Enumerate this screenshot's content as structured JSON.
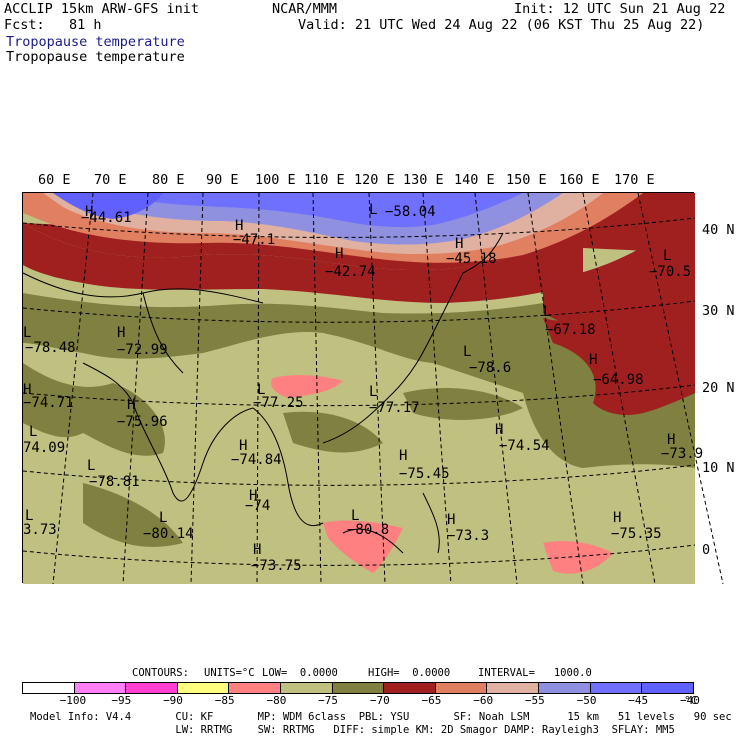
{
  "header": {
    "line1_left": "ACCLIP 15km ARW-GFS init",
    "line1_center": "NCAR/MMM",
    "line1_right": "Init: 12 UTC Sun 21 Aug 22",
    "line2_left": "Fcst:   81 h",
    "line2_right": "Valid: 21 UTC Wed 24 Aug 22 (06 KST Thu 25 Aug 22)",
    "field_title_1": "Tropopause temperature",
    "field_title_2": "Tropopause temperature"
  },
  "lon_labels": [
    "60 E",
    "70 E",
    "80 E",
    "90 E",
    "100 E",
    "110 E",
    "120 E",
    "130 E",
    "140 E",
    "150 E",
    "160 E",
    "170 E"
  ],
  "lat_labels": [
    "40 N",
    "30 N",
    "20 N",
    "10 N",
    "0"
  ],
  "extrema": [
    {
      "label": "−44.61",
      "marker": "H"
    },
    {
      "label": "−58.04",
      "marker": "L"
    },
    {
      "label": "−47.1",
      "marker": "H"
    },
    {
      "label": "−42.74",
      "marker": "H"
    },
    {
      "label": "−45.18",
      "marker": "H"
    },
    {
      "label": "−70.5",
      "marker": "L"
    },
    {
      "label": "−67.18",
      "marker": "L"
    },
    {
      "label": "−78.48",
      "marker": "L"
    },
    {
      "label": "−72.99",
      "marker": "H"
    },
    {
      "label": "−74.71",
      "marker": "H"
    },
    {
      "label": "−75.96",
      "marker": "H"
    },
    {
      "label": "−77.25",
      "marker": "L"
    },
    {
      "label": "−77.17",
      "marker": "L"
    },
    {
      "label": "−78.6",
      "marker": "L"
    },
    {
      "label": "−64.98",
      "marker": "H"
    },
    {
      "label": "−74.54",
      "marker": "H"
    },
    {
      "label": "−73.9",
      "marker": "H"
    },
    {
      "label": "74.09",
      "marker": "L"
    },
    {
      "label": "−74.84",
      "marker": "H"
    },
    {
      "label": "−75.45",
      "marker": "H"
    },
    {
      "label": "−78.81",
      "marker": "L"
    },
    {
      "label": "−74",
      "marker": "H"
    },
    {
      "label": "3.73",
      "marker": "L"
    },
    {
      "label": "−80.14",
      "marker": "L"
    },
    {
      "label": "−80.8",
      "marker": "L"
    },
    {
      "label": "−73.3",
      "marker": "H"
    },
    {
      "label": "−75.35",
      "marker": "H"
    },
    {
      "label": "−73.75",
      "marker": "H"
    }
  ],
  "contour_info": {
    "contours": "CONTOURS:",
    "units": "UNITS=°C",
    "low": "LOW=  0.0000",
    "high": "HIGH=  0.0000",
    "interval": "INTERVAL=   1000.0"
  },
  "colorbar": {
    "colors": [
      "#ffffff",
      "#ff80ff",
      "#ff40d0",
      "#ffff80",
      "#ff8080",
      "#c0c080",
      "#808040",
      "#a02020",
      "#e08060",
      "#e0b0a0",
      "#9090e0",
      "#7070ff",
      "#6060ff"
    ],
    "labels": [
      "−100",
      "−95",
      "−90",
      "−85",
      "−80",
      "−75",
      "−70",
      "−65",
      "−60",
      "−55",
      "−50",
      "−45",
      "−40",
      "°C"
    ]
  },
  "footer": {
    "line1": "Model Info: V4.4       CU: KF       MP: WDM 6class  PBL: YSU       SF: Noah LSM      15 km   51 levels   90 sec",
    "line2": "                       LW: RRTMG    SW: RRTMG   DIFF: simple KM: 2D Smagor DAMP: Rayleigh3  SFLAY: MM5"
  }
}
